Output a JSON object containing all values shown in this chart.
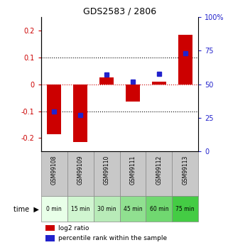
{
  "title": "GDS2583 / 2806",
  "samples": [
    "GSM99108",
    "GSM99109",
    "GSM99110",
    "GSM99111",
    "GSM99112",
    "GSM99113"
  ],
  "time_labels": [
    "0 min",
    "15 min",
    "30 min",
    "45 min",
    "60 min",
    "75 min"
  ],
  "log2_ratio": [
    -0.185,
    -0.215,
    0.025,
    -0.065,
    0.01,
    0.185
  ],
  "percentile_rank": [
    30,
    27,
    57,
    52,
    58,
    73
  ],
  "ylim_left": [
    -0.25,
    0.25
  ],
  "ylim_right": [
    0,
    100
  ],
  "yticks_left": [
    -0.2,
    -0.1,
    0.0,
    0.1,
    0.2
  ],
  "yticks_right": [
    0,
    25,
    50,
    75,
    100
  ],
  "bar_color": "#cc0000",
  "dot_color": "#2222cc",
  "bg_color": "#ffffff",
  "sample_bg_color": "#c8c8c8",
  "time_colors": [
    "#e8ffe8",
    "#d0f5d0",
    "#b8ebb8",
    "#90e090",
    "#70d870",
    "#44cc44"
  ],
  "legend_log2": "log2 ratio",
  "legend_pct": "percentile rank within the sample",
  "title_fontsize": 9
}
